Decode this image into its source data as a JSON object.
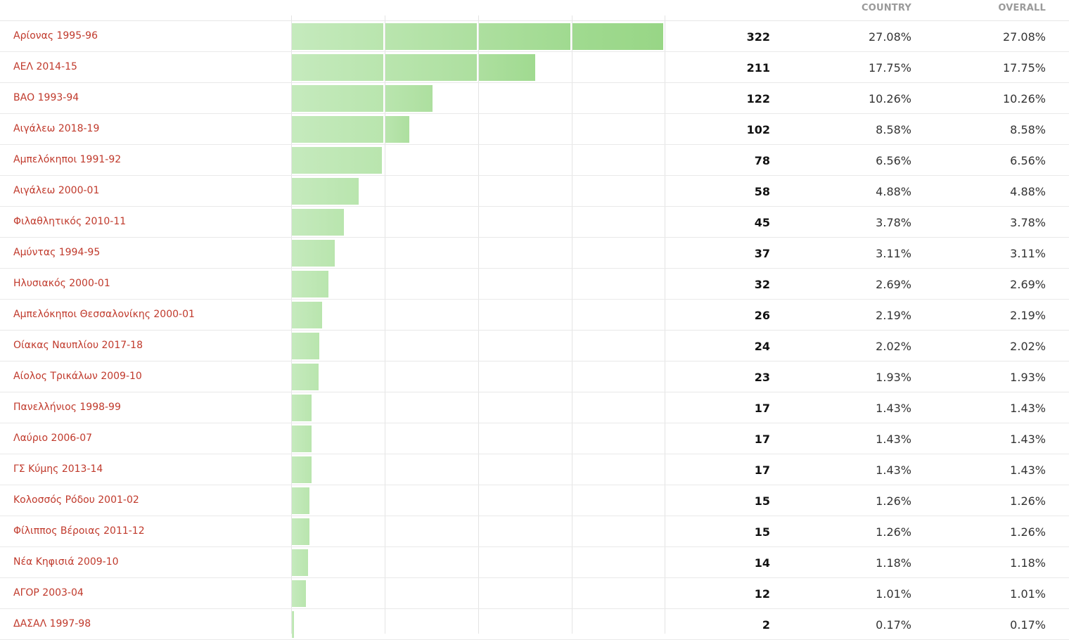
{
  "table": {
    "headers": {
      "country": "COUNTRY",
      "overall": "OVERALL"
    }
  },
  "chart_data": {
    "type": "bar",
    "orientation": "horizontal",
    "xlim": [
      0,
      322
    ],
    "bar_color": "#a3dc94",
    "categories": [
      "Αρίονας 1995-96",
      "ΑΕΛ 2014-15",
      "ΒΑΟ 1993-94",
      "Αιγάλεω 2018-19",
      "Αμπελόκηποι 1991-92",
      "Αιγάλεω 2000-01",
      "Φιλαθλητικός 2010-11",
      "Αμύντας 1994-95",
      "Ηλυσιακός 2000-01",
      "Αμπελόκηποι Θεσσαλονίκης 2000-01",
      "Οίακας Ναυπλίου 2017-18",
      "Αίολος Τρικάλων 2009-10",
      "Πανελλήνιος 1998-99",
      "Λαύριο 2006-07",
      "ΓΣ Κύμης 2013-14",
      "Κολοσσός Ρόδου 2001-02",
      "Φίλιππος Βέροιας 2011-12",
      "Νέα Κηφισιά 2009-10",
      "ΑΓΟΡ 2003-04",
      "ΔΑΣΑΛ 1997-98"
    ],
    "values": [
      322,
      211,
      122,
      102,
      78,
      58,
      45,
      37,
      32,
      26,
      24,
      23,
      17,
      17,
      17,
      15,
      15,
      14,
      12,
      2
    ],
    "country_pct": [
      "27.08%",
      "17.75%",
      "10.26%",
      "8.58%",
      "6.56%",
      "4.88%",
      "3.78%",
      "3.11%",
      "2.69%",
      "2.19%",
      "2.02%",
      "1.93%",
      "1.43%",
      "1.43%",
      "1.43%",
      "1.26%",
      "1.26%",
      "1.18%",
      "1.01%",
      "0.17%"
    ],
    "overall_pct": [
      "27.08%",
      "17.75%",
      "10.26%",
      "8.58%",
      "6.56%",
      "4.88%",
      "3.78%",
      "3.11%",
      "2.69%",
      "2.19%",
      "2.02%",
      "1.93%",
      "1.43%",
      "1.43%",
      "1.43%",
      "1.26%",
      "1.26%",
      "1.18%",
      "1.01%",
      "0.17%"
    ]
  }
}
